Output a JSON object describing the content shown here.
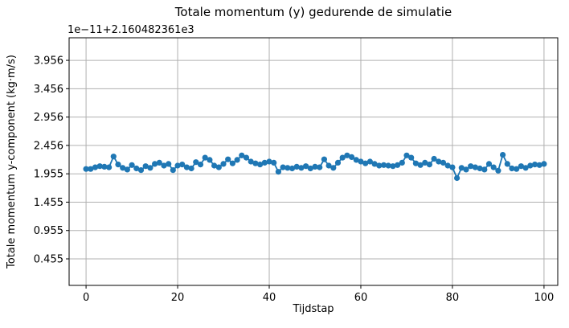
{
  "chart_data": {
    "type": "line",
    "title": "Totale momentum (y) gedurende de simulatie",
    "xlabel": "Tijdstap",
    "ylabel": "Totale momentum y-component (kg·m/s)",
    "offset_text": "1e−11+2.160482361e3",
    "grid": true,
    "legend": null,
    "line_color": "#1f77b4",
    "grid_color": "#b0b0b0",
    "spine_color": "#000000",
    "marker": "o",
    "xlim": [
      -3.7,
      103.0
    ],
    "ylim": [
      -0.013,
      4.354
    ],
    "xticks": [
      {
        "value": 0,
        "label": "0"
      },
      {
        "value": 20,
        "label": "20"
      },
      {
        "value": 40,
        "label": "40"
      },
      {
        "value": 60,
        "label": "60"
      },
      {
        "value": 80,
        "label": "80"
      },
      {
        "value": 100,
        "label": "100"
      }
    ],
    "yticks": [
      {
        "value": 3.956,
        "label": "3.956"
      },
      {
        "value": 3.456,
        "label": "3.456"
      },
      {
        "value": 2.956,
        "label": "2.956"
      },
      {
        "value": 2.456,
        "label": "2.456"
      },
      {
        "value": 1.955,
        "label": "1.955"
      },
      {
        "value": 1.455,
        "label": "1.455"
      },
      {
        "value": 0.955,
        "label": "0.955"
      },
      {
        "value": 0.455,
        "label": "0.455"
      }
    ],
    "x": [
      0,
      1,
      2,
      3,
      4,
      5,
      6,
      7,
      8,
      9,
      10,
      11,
      12,
      13,
      14,
      15,
      16,
      17,
      18,
      19,
      20,
      21,
      22,
      23,
      24,
      25,
      26,
      27,
      28,
      29,
      30,
      31,
      32,
      33,
      34,
      35,
      36,
      37,
      38,
      39,
      40,
      41,
      42,
      43,
      44,
      45,
      46,
      47,
      48,
      49,
      50,
      51,
      52,
      53,
      54,
      55,
      56,
      57,
      58,
      59,
      60,
      61,
      62,
      63,
      64,
      65,
      66,
      67,
      68,
      69,
      70,
      71,
      72,
      73,
      74,
      75,
      76,
      77,
      78,
      79,
      80,
      81,
      82,
      83,
      84,
      85,
      86,
      87,
      88,
      89,
      90,
      91,
      92,
      93,
      94,
      95,
      96,
      97,
      98,
      99,
      100
    ],
    "y": [
      2.04,
      2.04,
      2.07,
      2.09,
      2.08,
      2.07,
      2.26,
      2.12,
      2.06,
      2.03,
      2.11,
      2.05,
      2.02,
      2.09,
      2.06,
      2.13,
      2.15,
      2.1,
      2.13,
      2.02,
      2.1,
      2.12,
      2.07,
      2.05,
      2.16,
      2.12,
      2.24,
      2.2,
      2.1,
      2.07,
      2.13,
      2.21,
      2.14,
      2.2,
      2.28,
      2.24,
      2.17,
      2.14,
      2.12,
      2.15,
      2.17,
      2.15,
      1.99,
      2.07,
      2.06,
      2.05,
      2.08,
      2.06,
      2.09,
      2.05,
      2.08,
      2.07,
      2.21,
      2.1,
      2.06,
      2.15,
      2.24,
      2.28,
      2.25,
      2.2,
      2.17,
      2.14,
      2.17,
      2.13,
      2.1,
      2.11,
      2.1,
      2.09,
      2.11,
      2.15,
      2.28,
      2.24,
      2.14,
      2.11,
      2.15,
      2.12,
      2.22,
      2.17,
      2.15,
      2.1,
      2.07,
      1.88,
      2.06,
      2.03,
      2.09,
      2.07,
      2.05,
      2.03,
      2.13,
      2.07,
      2.01,
      2.29,
      2.13,
      2.05,
      2.04,
      2.09,
      2.06,
      2.1,
      2.12,
      2.11,
      2.13
    ]
  }
}
